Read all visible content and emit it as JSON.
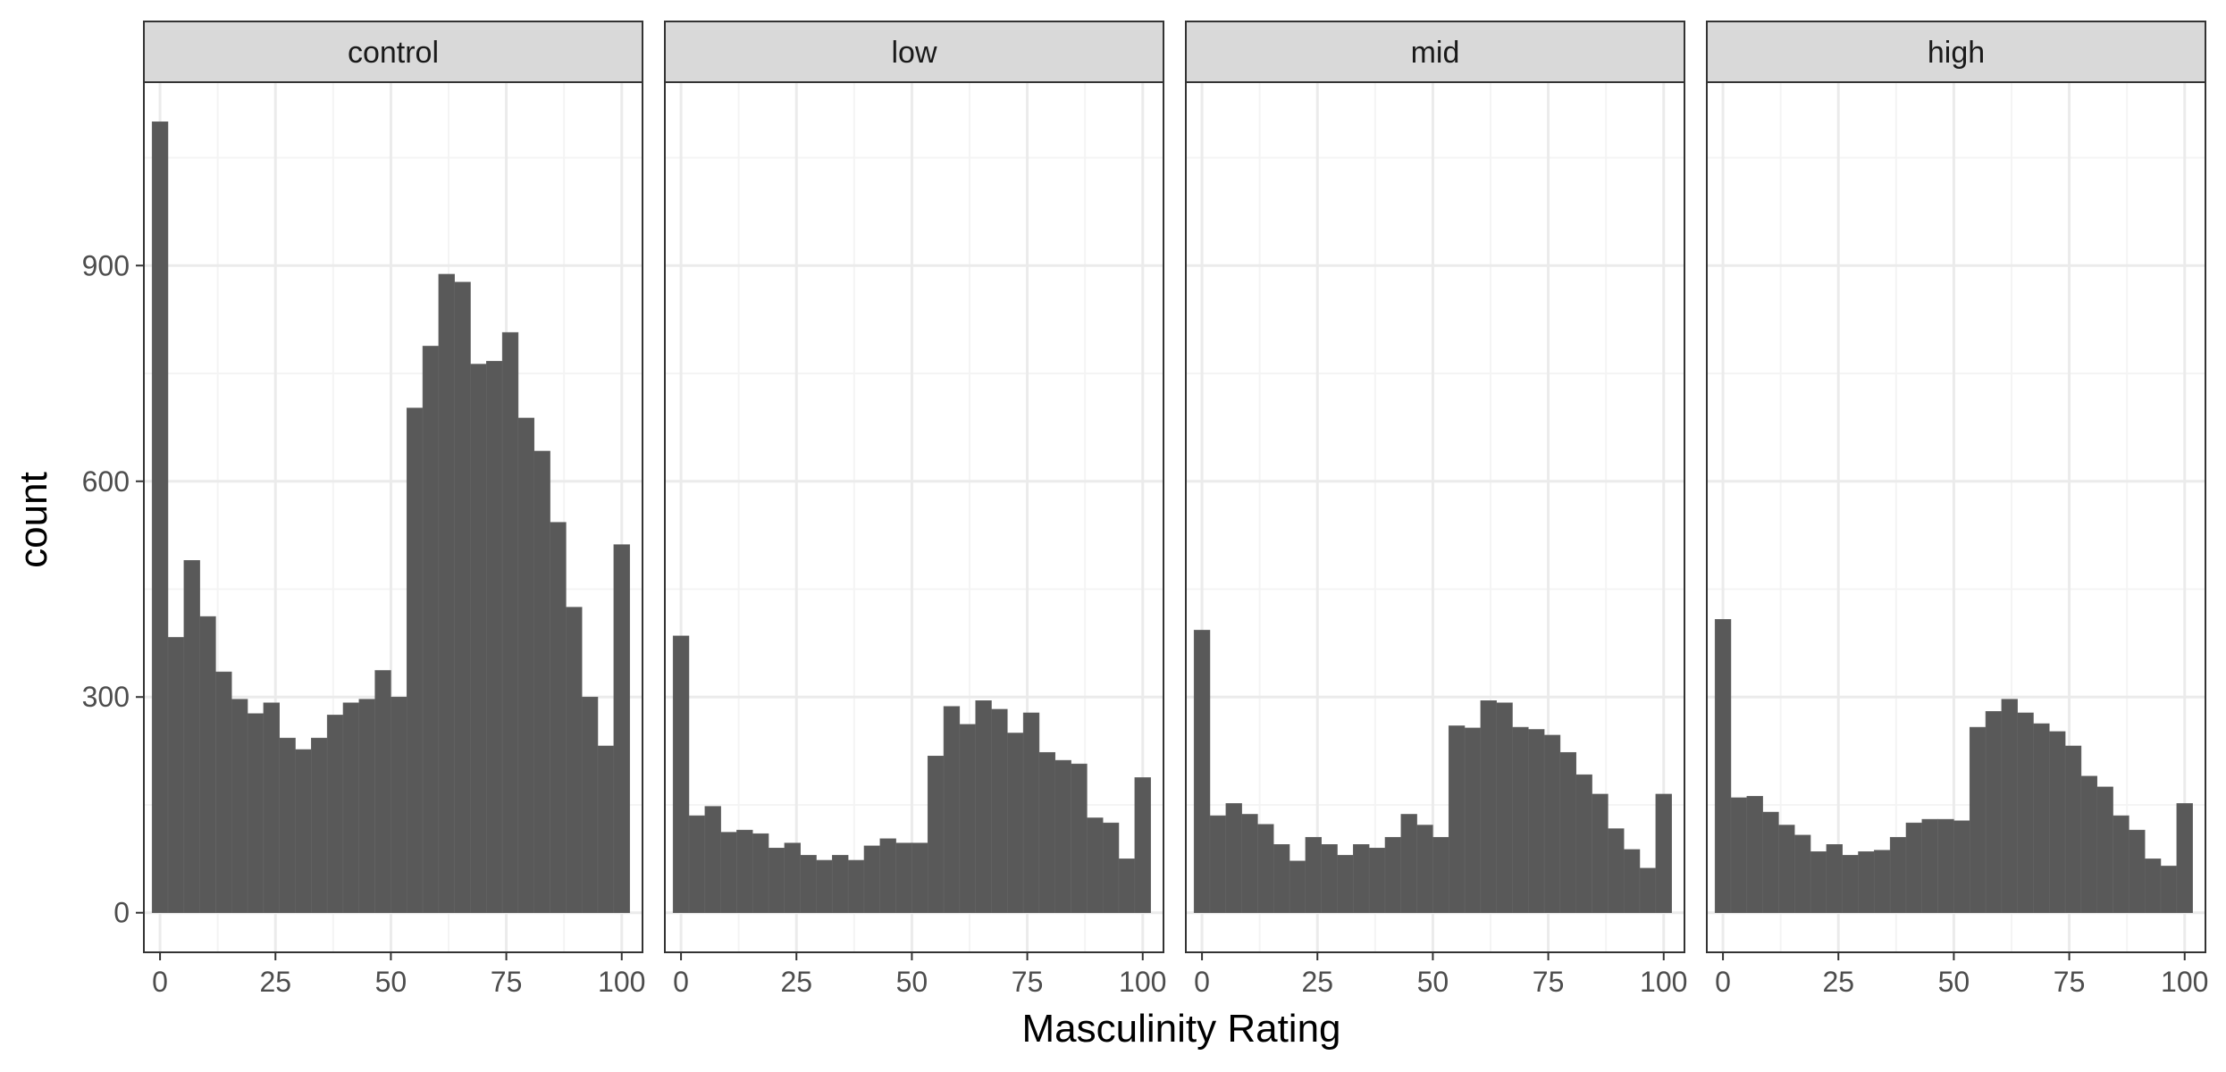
{
  "chart_data": {
    "type": "bar",
    "facets": [
      "control",
      "low",
      "mid",
      "high"
    ],
    "xlabel": "Masculinity Rating",
    "ylabel": "count",
    "xlim": [
      -3.5,
      104.5
    ],
    "ylim": [
      -55,
      1155
    ],
    "x_ticks": [
      0,
      25,
      50,
      75,
      100
    ],
    "y_ticks": [
      0,
      300,
      600,
      900
    ],
    "bin_centers": [
      0,
      3.45,
      6.9,
      10.34,
      13.79,
      17.24,
      20.69,
      24.14,
      27.59,
      31.03,
      34.48,
      37.93,
      41.38,
      44.83,
      48.28,
      51.72,
      55.17,
      58.62,
      62.07,
      65.52,
      68.97,
      72.41,
      75.86,
      79.31,
      82.76,
      86.21,
      89.66,
      93.1,
      96.55,
      100
    ],
    "bin_width": 3.45,
    "series": [
      {
        "name": "control",
        "values": [
          1100,
          383,
          490,
          412,
          335,
          297,
          277,
          292,
          243,
          227,
          243,
          275,
          292,
          297,
          337,
          300,
          702,
          788,
          888,
          877,
          763,
          767,
          807,
          688,
          642,
          543,
          425,
          300,
          232,
          512
        ]
      },
      {
        "name": "low",
        "values": [
          385,
          135,
          148,
          112,
          115,
          110,
          90,
          97,
          80,
          73,
          80,
          73,
          93,
          103,
          97,
          97,
          218,
          287,
          262,
          295,
          283,
          250,
          278,
          223,
          212,
          207,
          132,
          125,
          75,
          188
        ]
      },
      {
        "name": "mid",
        "values": [
          393,
          135,
          152,
          137,
          123,
          95,
          72,
          105,
          95,
          80,
          95,
          90,
          105,
          137,
          122,
          105,
          260,
          257,
          295,
          292,
          258,
          255,
          247,
          223,
          192,
          165,
          117,
          88,
          62,
          165
        ]
      },
      {
        "name": "high",
        "values": [
          408,
          160,
          162,
          140,
          122,
          108,
          85,
          95,
          80,
          85,
          87,
          105,
          125,
          130,
          130,
          128,
          258,
          280,
          297,
          278,
          263,
          252,
          232,
          190,
          175,
          135,
          115,
          75,
          65,
          152
        ]
      }
    ],
    "bar_color": "#595959",
    "panel_background": "#ffffff",
    "strip_background": "#d9d9d9",
    "border_color": "#333333",
    "grid_major_color": "#ebebeb",
    "grid_minor_color": "#f4f4f4",
    "grid": true,
    "legend": "none"
  }
}
